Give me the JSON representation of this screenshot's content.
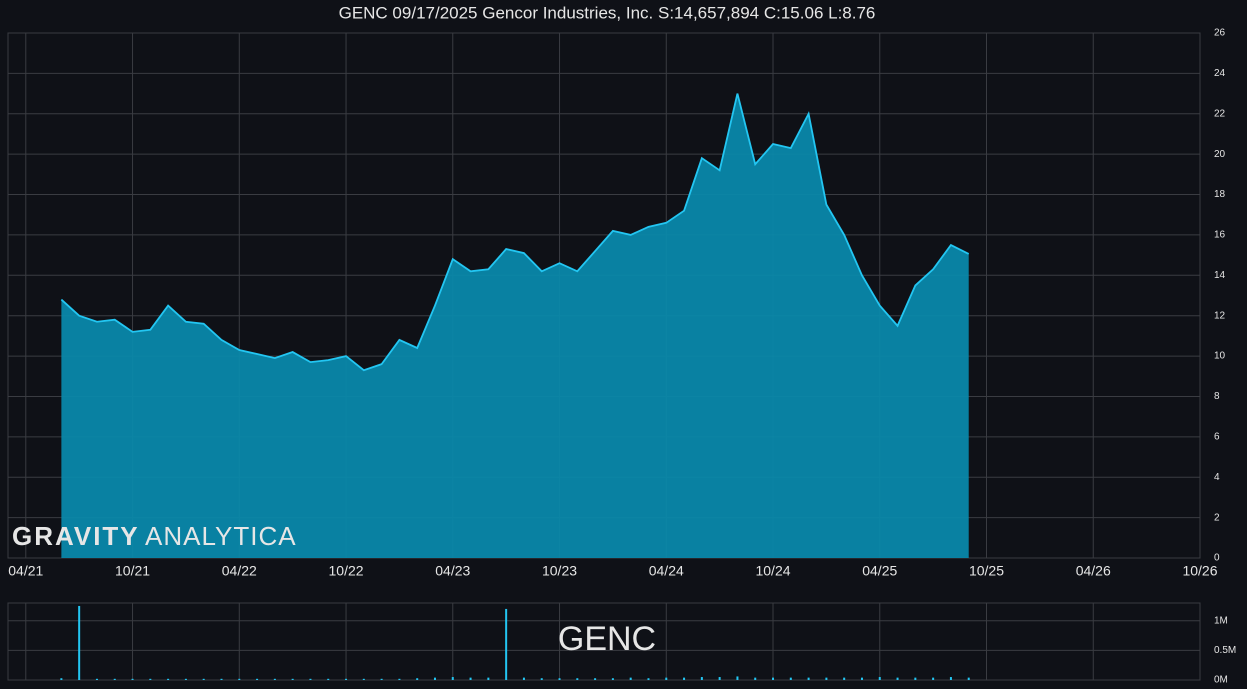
{
  "chart_data": [
    {
      "type": "area",
      "title": "GENC 09/17/2025 Gencor Industries, Inc. S:14,657,894 C:15.06 L:8.76",
      "watermark_bold": "GRAVITY",
      "watermark_light": "ANALYTICA",
      "color": "#23c6f2",
      "fill": "#0a88aa",
      "grid": true,
      "x": [
        "06/21",
        "07/21",
        "08/21",
        "09/21",
        "10/21",
        "11/21",
        "12/21",
        "01/22",
        "02/22",
        "03/22",
        "04/22",
        "05/22",
        "06/22",
        "07/22",
        "08/22",
        "09/22",
        "10/22",
        "11/22",
        "12/22",
        "01/23",
        "02/23",
        "03/23",
        "04/23",
        "05/23",
        "06/23",
        "07/23",
        "08/23",
        "09/23",
        "10/23",
        "11/23",
        "12/23",
        "01/24",
        "02/24",
        "03/24",
        "04/24",
        "05/24",
        "06/24",
        "07/24",
        "08/24",
        "09/24",
        "10/24",
        "11/24",
        "12/24",
        "01/25",
        "02/25",
        "03/25",
        "04/25",
        "05/25",
        "06/25",
        "07/25",
        "08/25",
        "09/25"
      ],
      "values": [
        12.8,
        12.0,
        11.7,
        11.8,
        11.2,
        11.3,
        12.5,
        11.7,
        11.6,
        10.8,
        10.3,
        10.1,
        9.9,
        10.2,
        9.7,
        9.8,
        10.0,
        9.3,
        9.6,
        10.8,
        10.4,
        12.5,
        14.8,
        14.2,
        14.3,
        15.3,
        15.1,
        14.2,
        14.6,
        14.2,
        15.2,
        16.2,
        16.0,
        16.4,
        16.6,
        17.2,
        19.8,
        19.2,
        23.0,
        19.5,
        20.5,
        20.3,
        22.0,
        17.5,
        16.0,
        14.0,
        12.5,
        11.5,
        13.5,
        14.3,
        15.5,
        15.06
      ],
      "xlim": [
        "03/21",
        "10/26"
      ],
      "xticks": [
        "04/21",
        "10/21",
        "04/22",
        "10/22",
        "04/23",
        "10/23",
        "04/24",
        "10/24",
        "04/25",
        "10/25",
        "04/26",
        "10/26"
      ],
      "ylim": [
        0,
        26
      ],
      "yticks": [
        0,
        2,
        4,
        6,
        8,
        10,
        12,
        14,
        16,
        18,
        20,
        22,
        24,
        26
      ]
    },
    {
      "type": "bar",
      "label": "GENC",
      "color": "#23c6f2",
      "grid": true,
      "x": [
        "06/21",
        "07/21",
        "08/21",
        "09/21",
        "10/21",
        "11/21",
        "12/21",
        "01/22",
        "02/22",
        "03/22",
        "04/22",
        "05/22",
        "06/22",
        "07/22",
        "08/22",
        "09/22",
        "10/22",
        "11/22",
        "12/22",
        "01/23",
        "02/23",
        "03/23",
        "04/23",
        "05/23",
        "06/23",
        "07/23",
        "08/23",
        "09/23",
        "10/23",
        "11/23",
        "12/23",
        "01/24",
        "02/24",
        "03/24",
        "04/24",
        "05/24",
        "06/24",
        "07/24",
        "08/24",
        "09/24",
        "10/24",
        "11/24",
        "12/24",
        "01/25",
        "02/25",
        "03/25",
        "04/25",
        "05/25",
        "06/25",
        "07/25",
        "08/25",
        "09/25"
      ],
      "values": [
        30000,
        1250000,
        20000,
        20000,
        20000,
        20000,
        20000,
        20000,
        20000,
        20000,
        20000,
        20000,
        20000,
        20000,
        20000,
        20000,
        20000,
        20000,
        20000,
        20000,
        30000,
        40000,
        50000,
        40000,
        40000,
        1200000,
        40000,
        30000,
        30000,
        30000,
        30000,
        30000,
        40000,
        30000,
        40000,
        40000,
        50000,
        50000,
        60000,
        40000,
        40000,
        40000,
        40000,
        40000,
        40000,
        40000,
        50000,
        40000,
        40000,
        40000,
        50000,
        40000
      ],
      "xlim": [
        "03/21",
        "10/26"
      ],
      "ylim": [
        0,
        1300000
      ],
      "yticks": [
        {
          "value": 0,
          "label": "0M"
        },
        {
          "value": 500000,
          "label": "0.5M"
        },
        {
          "value": 1000000,
          "label": "1M"
        }
      ]
    }
  ]
}
